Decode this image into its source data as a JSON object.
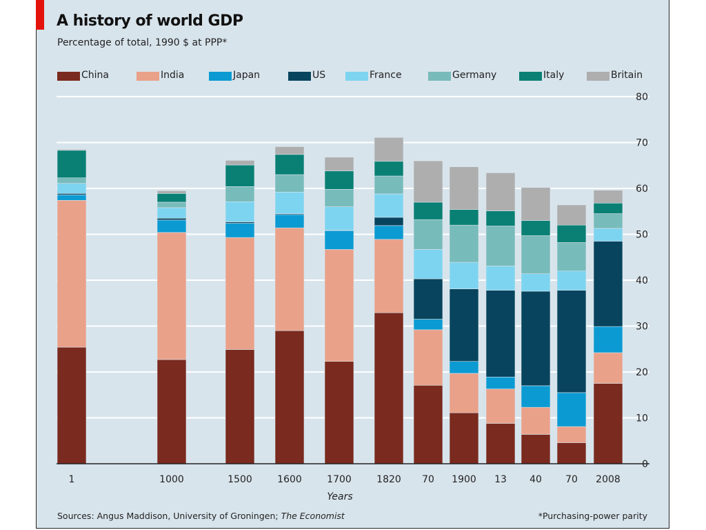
{
  "header": {
    "title": "A history of world GDP",
    "subtitle": "Percentage of total, 1990 $  at PPP*"
  },
  "footer": {
    "source_prefix": "Sources: Angus Maddison, University of Groningen; ",
    "source_italic": "The Economist",
    "note": "*Purchasing-power parity"
  },
  "colors": {
    "background": "#d8e4ec",
    "accent": "#e3120b",
    "China": "#7a2a1e",
    "India": "#eaa189",
    "Japan": "#0b9bd2",
    "US": "#08445e",
    "France": "#7dd4f0",
    "Germany": "#78bbbb",
    "Italy": "#0a8074",
    "Britain": "#aeaeae"
  },
  "chart_data": {
    "type": "bar",
    "stacked": true,
    "categories": [
      "1",
      "1000",
      "1500",
      "1600",
      "1700",
      "1820",
      "70",
      "1900",
      "13",
      "40",
      "70",
      "2008"
    ],
    "xlabel": "Years",
    "ylabel": "",
    "ylim": [
      0,
      80
    ],
    "yticks": [
      0,
      10,
      20,
      30,
      40,
      50,
      60,
      70,
      80
    ],
    "yaxis_side": "right",
    "grid": true,
    "legend_position": "top",
    "series": [
      {
        "name": "China",
        "values": [
          25.4,
          22.7,
          24.9,
          29.0,
          22.3,
          32.9,
          17.1,
          11.1,
          8.8,
          6.4,
          4.6,
          17.5
        ]
      },
      {
        "name": "India",
        "values": [
          32.0,
          27.7,
          24.4,
          22.4,
          24.4,
          16.0,
          12.1,
          8.6,
          7.5,
          5.9,
          3.5,
          6.7
        ]
      },
      {
        "name": "Japan",
        "values": [
          1.2,
          2.7,
          3.1,
          2.9,
          4.1,
          3.0,
          2.3,
          2.6,
          2.6,
          4.7,
          7.4,
          5.7
        ]
      },
      {
        "name": "US",
        "values": [
          0.3,
          0.4,
          0.3,
          0.2,
          0.1,
          1.8,
          8.8,
          15.8,
          18.9,
          20.6,
          22.3,
          18.6
        ]
      },
      {
        "name": "France",
        "values": [
          2.2,
          2.3,
          4.4,
          4.7,
          5.1,
          5.1,
          6.4,
          5.8,
          5.3,
          3.8,
          4.2,
          2.8
        ]
      },
      {
        "name": "Germany",
        "values": [
          1.2,
          1.2,
          3.3,
          3.8,
          3.8,
          3.9,
          6.5,
          8.1,
          8.7,
          8.3,
          6.2,
          3.2
        ]
      },
      {
        "name": "Italy",
        "values": [
          6.0,
          1.9,
          4.7,
          4.4,
          4.0,
          3.2,
          3.8,
          3.4,
          3.3,
          3.3,
          3.8,
          2.3
        ]
      },
      {
        "name": "Britain",
        "values": [
          0.2,
          0.6,
          1.0,
          1.7,
          3.0,
          5.2,
          9.0,
          9.3,
          8.3,
          7.2,
          4.4,
          2.8
        ]
      }
    ]
  }
}
